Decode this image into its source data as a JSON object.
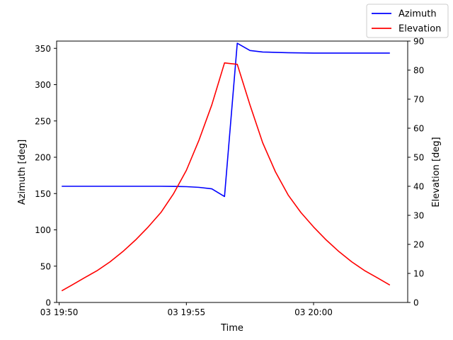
{
  "chart_data": {
    "type": "line",
    "title": "",
    "xlabel": "Time",
    "ylabel_left": "Azimuth [deg]",
    "ylabel_right": "Elevation [deg]",
    "x_ticks": [
      "03 19:50",
      "03 19:55",
      "03 20:00"
    ],
    "x_tick_minutes": [
      0,
      5,
      10
    ],
    "xlim_minutes": [
      -0.1,
      13.7
    ],
    "ylim_left": [
      0,
      360
    ],
    "ylim_right": [
      0,
      90
    ],
    "y_ticks_left": [
      0,
      50,
      100,
      150,
      200,
      250,
      300,
      350
    ],
    "y_ticks_right": [
      0,
      10,
      20,
      30,
      40,
      50,
      60,
      70,
      80,
      90
    ],
    "grid": false,
    "legend_position": "top-right",
    "series": [
      {
        "name": "Azimuth",
        "axis": "left",
        "color": "#0000ff",
        "x_minutes": [
          0.1,
          1.0,
          2.0,
          3.0,
          4.0,
          4.5,
          5.0,
          5.5,
          6.0,
          6.5,
          7.0,
          7.5,
          8.0,
          8.5,
          9.0,
          10.0,
          11.0,
          12.0,
          13.0
        ],
        "values": [
          160,
          160,
          160,
          160,
          160,
          159.8,
          159.5,
          158.5,
          156.5,
          146,
          357,
          347,
          345,
          344.5,
          344,
          343.5,
          343.5,
          343.5,
          343.5
        ]
      },
      {
        "name": "Elevation",
        "axis": "right",
        "color": "#ff0000",
        "x_minutes": [
          0.1,
          0.5,
          1.0,
          1.5,
          2.0,
          2.5,
          3.0,
          3.5,
          4.0,
          4.5,
          5.0,
          5.5,
          6.0,
          6.5,
          7.0,
          7.5,
          8.0,
          8.5,
          9.0,
          9.5,
          10.0,
          10.5,
          11.0,
          11.5,
          12.0,
          12.5,
          13.0
        ],
        "values": [
          4,
          6,
          8.5,
          11,
          14,
          17.5,
          21.5,
          26,
          31,
          37.5,
          45.5,
          56,
          68,
          82.5,
          82,
          68,
          55,
          45,
          37,
          31,
          26,
          21.5,
          17.5,
          14,
          11,
          8.5,
          6
        ]
      }
    ]
  }
}
